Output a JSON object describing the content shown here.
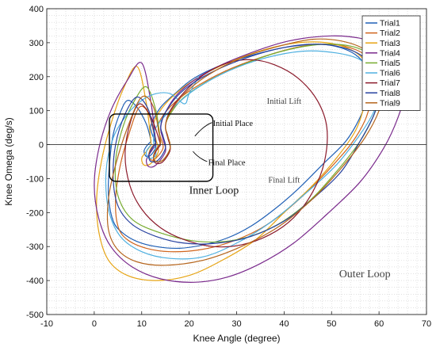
{
  "chart_data": {
    "type": "line",
    "xlabel": "Knee Angle (degree)",
    "ylabel": "Knee Omega (deg/s)",
    "xlim": [
      -10,
      70
    ],
    "ylim": [
      -500,
      400
    ],
    "x_ticks": [
      -10,
      0,
      10,
      20,
      30,
      40,
      50,
      60,
      70
    ],
    "y_ticks": [
      -500,
      -400,
      -300,
      -200,
      -100,
      0,
      100,
      200,
      300,
      400
    ],
    "grid": "dotted minor grid",
    "legend_position": "top-right",
    "annotations": [
      {
        "text": "Initial Lift",
        "x": 40,
        "y": 120
      },
      {
        "text": "Final Lift",
        "x": 40,
        "y": -112
      },
      {
        "text": "Initial Place",
        "x": 25,
        "y": 55
      },
      {
        "text": "Final Place",
        "x": 24,
        "y": -60
      },
      {
        "text": "Inner Loop",
        "x": 20,
        "y": -145
      },
      {
        "text": "Outer Loop",
        "x": 57,
        "y": -390
      }
    ],
    "series": [
      {
        "name": "Trial1",
        "color": "#1f5fb5",
        "x": [
          12,
          11,
          10.5,
          11,
          12,
          13,
          12.5,
          12,
          12,
          14,
          17,
          21,
          27,
          35,
          42,
          48,
          52,
          55,
          57,
          58,
          57.5,
          56,
          53,
          48,
          43,
          38,
          33,
          28,
          23,
          18,
          13,
          9,
          6,
          4,
          3,
          3.2,
          4,
          5.5,
          7,
          9,
          11,
          12
        ],
        "y": [
          10,
          -5,
          -20,
          -35,
          -30,
          -5,
          20,
          40,
          60,
          110,
          150,
          195,
          235,
          270,
          290,
          295,
          285,
          265,
          235,
          190,
          140,
          80,
          10,
          -60,
          -130,
          -190,
          -240,
          -275,
          -295,
          -305,
          -300,
          -285,
          -260,
          -225,
          -150,
          -60,
          30,
          95,
          130,
          110,
          60,
          10
        ]
      },
      {
        "name": "Trial2",
        "color": "#d0641c",
        "x": [
          13,
          12,
          11.5,
          12,
          13,
          14.5,
          14,
          13.5,
          14,
          17,
          22,
          29,
          37,
          44,
          50,
          55,
          58,
          59,
          58.5,
          57,
          54,
          49,
          44,
          39,
          34,
          28,
          22,
          16,
          11,
          7,
          5,
          4.5,
          5.5,
          7.5,
          9.5,
          11.5,
          13
        ],
        "y": [
          5,
          -10,
          -30,
          -45,
          -40,
          -10,
          20,
          45,
          75,
          125,
          175,
          225,
          265,
          290,
          295,
          280,
          250,
          200,
          140,
          70,
          0,
          -80,
          -150,
          -210,
          -255,
          -290,
          -310,
          -315,
          -305,
          -280,
          -240,
          -160,
          -60,
          40,
          110,
          90,
          5
        ]
      },
      {
        "name": "Trial3",
        "color": "#e6a414",
        "x": [
          12,
          11,
          10,
          10.5,
          12,
          13.5,
          13,
          12.5,
          13,
          16,
          21,
          28,
          36,
          43,
          49,
          54,
          57,
          58,
          57,
          55,
          51,
          46,
          40,
          34,
          27,
          20,
          13,
          7,
          3,
          1,
          0.5,
          1.5,
          3.5,
          6,
          9,
          11,
          12
        ],
        "y": [
          0,
          -20,
          -40,
          -60,
          -55,
          -20,
          15,
          45,
          80,
          135,
          190,
          240,
          280,
          300,
          300,
          280,
          245,
          190,
          120,
          40,
          -40,
          -120,
          -200,
          -280,
          -340,
          -385,
          -400,
          -385,
          -340,
          -260,
          -160,
          -50,
          60,
          160,
          230,
          120,
          0
        ]
      },
      {
        "name": "Trial4",
        "color": "#7a2a8c",
        "x": [
          13,
          12,
          11,
          11.5,
          13,
          15,
          14.5,
          14,
          15,
          18,
          24,
          32,
          41,
          50,
          57,
          62,
          65,
          65.5,
          64,
          61,
          56,
          49,
          42,
          35,
          28,
          21,
          14,
          8,
          3.5,
          1,
          0,
          1,
          3.5,
          7,
          10,
          12,
          13
        ],
        "y": [
          0,
          -20,
          -45,
          -65,
          -60,
          -20,
          15,
          50,
          95,
          155,
          215,
          265,
          305,
          320,
          310,
          280,
          230,
          160,
          80,
          -10,
          -110,
          -205,
          -290,
          -350,
          -390,
          -405,
          -395,
          -360,
          -300,
          -220,
          -120,
          -10,
          100,
          190,
          240,
          120,
          0
        ]
      },
      {
        "name": "Trial5",
        "color": "#77ac30",
        "x": [
          14,
          13,
          12.5,
          13,
          14.5,
          16,
          15.5,
          15,
          16,
          19,
          25,
          33,
          41,
          48,
          54,
          58,
          60,
          60.5,
          59,
          56,
          51,
          45,
          38,
          30,
          22,
          14,
          8,
          5,
          4.5,
          6,
          8.5,
          11,
          13,
          14
        ],
        "y": [
          5,
          -15,
          -35,
          -50,
          -45,
          -10,
          25,
          55,
          90,
          140,
          195,
          245,
          280,
          295,
          290,
          265,
          220,
          160,
          90,
          10,
          -80,
          -170,
          -240,
          -280,
          -285,
          -260,
          -220,
          -150,
          -50,
          50,
          130,
          170,
          100,
          5
        ]
      },
      {
        "name": "Trial6",
        "color": "#4fb0e0",
        "x": [
          12,
          11,
          11.5,
          13,
          12.5,
          13,
          16,
          21,
          28,
          36,
          44,
          51,
          56,
          59,
          60,
          59,
          56,
          51,
          44,
          37,
          30,
          23,
          16,
          10,
          5.5,
          3,
          2.5,
          4,
          7,
          10,
          13,
          16,
          19,
          20,
          22
        ],
        "y": [
          0,
          -20,
          -40,
          -30,
          10,
          50,
          100,
          160,
          215,
          255,
          275,
          270,
          250,
          210,
          160,
          100,
          30,
          -60,
          -150,
          -230,
          -290,
          -330,
          -335,
          -315,
          -270,
          -190,
          -80,
          20,
          90,
          130,
          150,
          150,
          120,
          150,
          200
        ]
      },
      {
        "name": "Trial7",
        "color": "#8b1a2b",
        "x": [
          14,
          13,
          12.5,
          13,
          14.5,
          16,
          15.5,
          15,
          16,
          19,
          23,
          28,
          33,
          38,
          43,
          47,
          49,
          48.5,
          46,
          42,
          37,
          31,
          25,
          19,
          14,
          10,
          7.5,
          6.5,
          7.5,
          9.5,
          12,
          14
        ],
        "y": [
          0,
          -20,
          -40,
          -55,
          -50,
          -15,
          20,
          55,
          100,
          155,
          205,
          240,
          250,
          235,
          195,
          130,
          50,
          -50,
          -140,
          -215,
          -265,
          -295,
          -300,
          -280,
          -245,
          -190,
          -120,
          -30,
          60,
          120,
          80,
          0
        ]
      },
      {
        "name": "Trial8",
        "color": "#2842a0",
        "x": [
          13,
          12,
          11.5,
          12,
          13.5,
          15,
          14.5,
          14,
          15,
          18,
          23,
          30,
          38,
          45,
          51,
          56,
          59,
          60,
          59,
          56,
          52,
          46,
          40,
          33,
          26,
          19,
          13,
          8,
          5,
          4,
          4.5,
          6.5,
          9,
          11.5,
          13
        ],
        "y": [
          5,
          -15,
          -35,
          -50,
          -45,
          -10,
          25,
          55,
          95,
          150,
          200,
          245,
          280,
          295,
          290,
          265,
          220,
          160,
          90,
          10,
          -80,
          -160,
          -225,
          -270,
          -290,
          -290,
          -270,
          -235,
          -180,
          -100,
          0,
          90,
          140,
          100,
          5
        ]
      },
      {
        "name": "Trial9",
        "color": "#b5651d",
        "x": [
          14,
          13,
          12.5,
          13,
          14.5,
          16,
          15.5,
          15,
          16,
          19,
          24,
          31,
          39,
          46,
          52,
          57,
          60,
          61,
          60,
          57,
          52,
          46,
          39,
          31,
          23,
          15,
          9,
          5,
          3,
          3,
          4.5,
          7,
          10,
          12.5,
          14
        ],
        "y": [
          5,
          -15,
          -35,
          -50,
          -45,
          -10,
          25,
          55,
          95,
          150,
          205,
          255,
          290,
          310,
          305,
          280,
          235,
          170,
          100,
          20,
          -70,
          -160,
          -240,
          -300,
          -340,
          -355,
          -345,
          -310,
          -250,
          -160,
          -60,
          50,
          140,
          110,
          5
        ]
      }
    ]
  },
  "colors": {
    "inner_loop_box": "#000000",
    "grid_minor": "#cfcfcf",
    "zero_line": "#333333"
  }
}
